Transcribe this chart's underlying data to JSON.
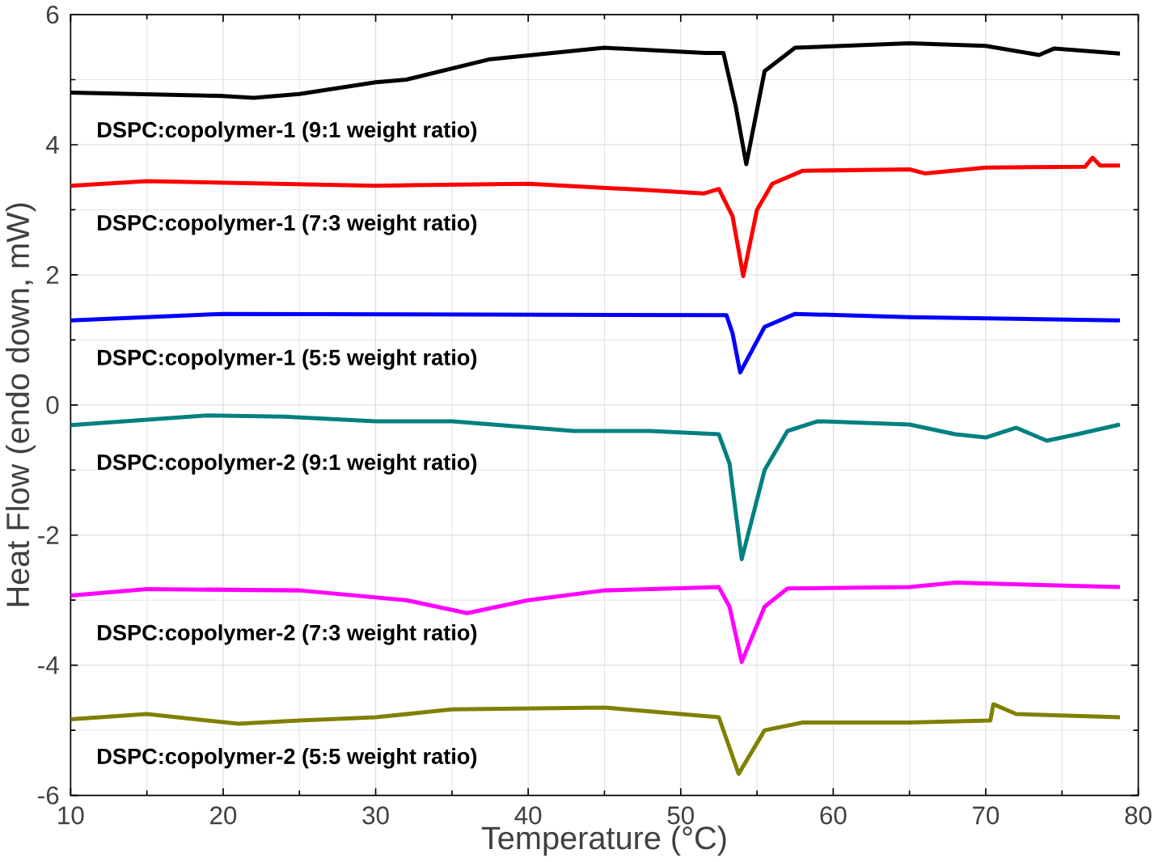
{
  "chart_data": {
    "type": "line",
    "xlabel": "Temperature (°C)",
    "ylabel": "Heat Flow (endo down, mW)",
    "xlim": [
      10,
      80
    ],
    "ylim": [
      -6,
      6
    ],
    "xticks": [
      10,
      20,
      30,
      40,
      50,
      60,
      70,
      80
    ],
    "yticks": [
      -6,
      -4,
      -2,
      0,
      2,
      4,
      6
    ],
    "grid": true,
    "marker": "none",
    "line_style": "solid",
    "series": [
      {
        "name": "DSPC:copolymer-1 (9:1 weight ratio)",
        "color": "#000000",
        "x": [
          10,
          20,
          22,
          25,
          30,
          32,
          37.4,
          45,
          51.6,
          52.8,
          53.6,
          54.3,
          55.5,
          57.5,
          65,
          70,
          73.5,
          74.5,
          78.8
        ],
        "values": [
          4.8,
          4.75,
          4.72,
          4.78,
          4.96,
          5.0,
          5.31,
          5.49,
          5.41,
          5.41,
          4.6,
          3.7,
          5.13,
          5.49,
          5.56,
          5.52,
          5.38,
          5.48,
          5.4
        ]
      },
      {
        "name": "DSPC:copolymer-1 (7:3 weight ratio)",
        "color": "#ff0000",
        "x": [
          10,
          15,
          30,
          40,
          48,
          51.5,
          52.5,
          53.4,
          54.1,
          55,
          56,
          58,
          65,
          66,
          70,
          76.5,
          77,
          77.5,
          78.8
        ],
        "values": [
          3.37,
          3.44,
          3.37,
          3.4,
          3.3,
          3.25,
          3.32,
          2.9,
          1.98,
          3.0,
          3.4,
          3.6,
          3.62,
          3.56,
          3.65,
          3.66,
          3.8,
          3.68,
          3.68
        ]
      },
      {
        "name": "DSPC:copolymer-1 (5:5 weight ratio)",
        "color": "#0000ff",
        "x": [
          10,
          20,
          53,
          53.4,
          53.9,
          55.5,
          57.5,
          65,
          78.8
        ],
        "values": [
          1.3,
          1.4,
          1.38,
          1.1,
          0.5,
          1.2,
          1.4,
          1.35,
          1.3
        ]
      },
      {
        "name": "DSPC:copolymer-2 (9:1 weight ratio)",
        "color": "#008080",
        "x": [
          10,
          19,
          24,
          30,
          35,
          43,
          48,
          52.5,
          53.2,
          54,
          55.5,
          57,
          59,
          65,
          68,
          70,
          72,
          74,
          76,
          78.8
        ],
        "values": [
          -0.31,
          -0.16,
          -0.18,
          -0.25,
          -0.25,
          -0.4,
          -0.4,
          -0.45,
          -0.9,
          -2.37,
          -1.0,
          -0.4,
          -0.25,
          -0.3,
          -0.45,
          -0.5,
          -0.35,
          -0.55,
          -0.45,
          -0.3
        ]
      },
      {
        "name": "DSPC:copolymer-2 (7:3 weight ratio)",
        "color": "#ff00ff",
        "x": [
          10,
          15,
          25,
          32,
          36,
          40,
          45,
          52.5,
          53.2,
          54,
          55.5,
          57,
          65,
          68,
          78.8
        ],
        "values": [
          -2.93,
          -2.83,
          -2.85,
          -3.0,
          -3.2,
          -3.0,
          -2.85,
          -2.8,
          -3.1,
          -3.95,
          -3.1,
          -2.82,
          -2.8,
          -2.73,
          -2.8
        ]
      },
      {
        "name": "DSPC:copolymer-2 (5:5 weight ratio)",
        "color": "#808000",
        "x": [
          10,
          15,
          21,
          25,
          30,
          35,
          45,
          50,
          52.5,
          53.8,
          55.5,
          58,
          65,
          70.3,
          70.5,
          72,
          78.8
        ],
        "values": [
          -4.83,
          -4.75,
          -4.9,
          -4.85,
          -4.8,
          -4.68,
          -4.65,
          -4.75,
          -4.8,
          -5.67,
          -5.0,
          -4.88,
          -4.88,
          -4.85,
          -4.6,
          -4.75,
          -4.8
        ]
      }
    ]
  }
}
